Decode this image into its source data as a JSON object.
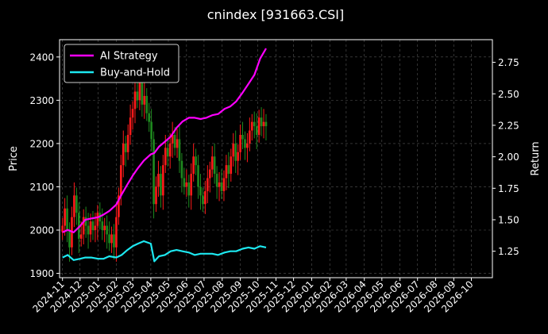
{
  "chart_data": {
    "type": "candlestick+line",
    "title": "cnindex [931663.CSI]",
    "ylabel_left": "Price",
    "ylabel_right": "Return",
    "ylim_left": [
      1890,
      2440
    ],
    "ylim_right": [
      1.04,
      2.93
    ],
    "yticks_left": [
      "1900",
      "2000",
      "2100",
      "2200",
      "2300",
      "2400"
    ],
    "yticks_right": [
      "1.25",
      "1.50",
      "1.75",
      "2.00",
      "2.25",
      "2.50",
      "2.75"
    ],
    "xlim": [
      "2024-10-27",
      "2026-11-06"
    ],
    "xticks": [
      "2024-11",
      "2024-12",
      "2025-01",
      "2025-02",
      "2025-03",
      "2025-04",
      "2025-05",
      "2025-06",
      "2025-07",
      "2025-08",
      "2025-09",
      "2025-10",
      "2025-11",
      "2025-12",
      "2026-01",
      "2026-02",
      "2026-03",
      "2026-04",
      "2026-05",
      "2026-06",
      "2026-07",
      "2026-08",
      "2026-09",
      "2026-10"
    ],
    "grid": true,
    "legend_position": "upper-left",
    "colors": {
      "up": "#ff1a1a",
      "down": "#1f8a1f",
      "ai_strategy": "#ff00ff",
      "buy_and_hold": "#1de8f0",
      "grid": "#555555"
    },
    "series": [
      {
        "name": "AI Strategy",
        "axis": "right",
        "x": [
          "2024-11-01",
          "2024-11-10",
          "2024-11-20",
          "2024-12-01",
          "2024-12-10",
          "2024-12-20",
          "2025-01-01",
          "2025-01-10",
          "2025-01-20",
          "2025-02-01",
          "2025-02-10",
          "2025-02-20",
          "2025-03-01",
          "2025-03-10",
          "2025-03-20",
          "2025-04-01",
          "2025-04-07",
          "2025-04-15",
          "2025-04-25",
          "2025-05-05",
          "2025-05-15",
          "2025-05-25",
          "2025-06-05",
          "2025-06-15",
          "2025-06-25",
          "2025-07-05",
          "2025-07-15",
          "2025-07-25",
          "2025-08-05",
          "2025-08-15",
          "2025-08-25",
          "2025-09-05",
          "2025-09-15",
          "2025-09-25",
          "2025-10-05",
          "2025-10-15"
        ],
        "values": [
          1.4,
          1.42,
          1.4,
          1.45,
          1.5,
          1.51,
          1.52,
          1.54,
          1.57,
          1.62,
          1.7,
          1.78,
          1.85,
          1.91,
          1.97,
          2.02,
          2.03,
          2.08,
          2.12,
          2.16,
          2.23,
          2.28,
          2.31,
          2.31,
          2.3,
          2.31,
          2.33,
          2.34,
          2.38,
          2.4,
          2.44,
          2.51,
          2.58,
          2.65,
          2.78,
          2.86
        ]
      },
      {
        "name": "Buy-and-Hold",
        "axis": "right",
        "x": [
          "2024-11-01",
          "2024-11-10",
          "2024-11-20",
          "2024-12-01",
          "2024-12-10",
          "2024-12-20",
          "2025-01-01",
          "2025-01-10",
          "2025-01-20",
          "2025-02-01",
          "2025-02-10",
          "2025-02-20",
          "2025-03-01",
          "2025-03-10",
          "2025-03-20",
          "2025-04-01",
          "2025-04-07",
          "2025-04-15",
          "2025-04-25",
          "2025-05-05",
          "2025-05-15",
          "2025-05-25",
          "2025-06-05",
          "2025-06-15",
          "2025-06-25",
          "2025-07-05",
          "2025-07-15",
          "2025-07-25",
          "2025-08-05",
          "2025-08-15",
          "2025-08-25",
          "2025-09-05",
          "2025-09-15",
          "2025-09-25",
          "2025-10-05",
          "2025-10-15"
        ],
        "values": [
          1.2,
          1.22,
          1.18,
          1.19,
          1.2,
          1.2,
          1.19,
          1.19,
          1.21,
          1.2,
          1.22,
          1.26,
          1.29,
          1.31,
          1.33,
          1.31,
          1.17,
          1.21,
          1.22,
          1.25,
          1.26,
          1.25,
          1.24,
          1.22,
          1.23,
          1.23,
          1.23,
          1.22,
          1.24,
          1.25,
          1.25,
          1.27,
          1.28,
          1.27,
          1.29,
          1.28
        ]
      }
    ],
    "candles": {
      "axis": "left",
      "x": [
        "2024-11-01",
        "2024-11-05",
        "2024-11-09",
        "2024-11-13",
        "2024-11-17",
        "2024-11-21",
        "2024-11-25",
        "2024-11-29",
        "2024-12-03",
        "2024-12-07",
        "2024-12-11",
        "2024-12-15",
        "2024-12-19",
        "2024-12-23",
        "2024-12-27",
        "2024-12-31",
        "2025-01-04",
        "2025-01-08",
        "2025-01-12",
        "2025-01-16",
        "2025-01-20",
        "2025-01-24",
        "2025-01-28",
        "2025-02-01",
        "2025-02-05",
        "2025-02-09",
        "2025-02-13",
        "2025-02-17",
        "2025-02-21",
        "2025-02-25",
        "2025-03-01",
        "2025-03-05",
        "2025-03-09",
        "2025-03-13",
        "2025-03-17",
        "2025-03-21",
        "2025-03-25",
        "2025-03-29",
        "2025-04-02",
        "2025-04-06",
        "2025-04-10",
        "2025-04-14",
        "2025-04-18",
        "2025-04-22",
        "2025-04-26",
        "2025-04-30",
        "2025-05-04",
        "2025-05-08",
        "2025-05-12",
        "2025-05-16",
        "2025-05-20",
        "2025-05-24",
        "2025-05-28",
        "2025-06-01",
        "2025-06-05",
        "2025-06-09",
        "2025-06-13",
        "2025-06-17",
        "2025-06-21",
        "2025-06-25",
        "2025-06-29",
        "2025-07-03",
        "2025-07-07",
        "2025-07-11",
        "2025-07-15",
        "2025-07-19",
        "2025-07-23",
        "2025-07-27",
        "2025-07-31",
        "2025-08-04",
        "2025-08-08",
        "2025-08-12",
        "2025-08-16",
        "2025-08-20",
        "2025-08-24",
        "2025-08-28",
        "2025-09-01",
        "2025-09-05",
        "2025-09-09",
        "2025-09-13",
        "2025-09-17",
        "2025-09-21",
        "2025-09-25",
        "2025-09-29",
        "2025-10-03",
        "2025-10-07",
        "2025-10-11",
        "2025-10-15"
      ],
      "close": [
        2010,
        2050,
        2000,
        1960,
        2030,
        2080,
        2040,
        1980,
        1990,
        2030,
        2010,
        1990,
        2020,
        2000,
        2010,
        2040,
        2020,
        2000,
        2010,
        1990,
        1970,
        1990,
        1960,
        2030,
        2080,
        2150,
        2200,
        2180,
        2220,
        2260,
        2280,
        2320,
        2300,
        2340,
        2290,
        2310,
        2270,
        2250,
        2210,
        2060,
        2100,
        2130,
        2080,
        2150,
        2190,
        2170,
        2200,
        2220,
        2190,
        2210,
        2160,
        2120,
        2100,
        2110,
        2080,
        2130,
        2170,
        2150,
        2100,
        2080,
        2060,
        2090,
        2120,
        2140,
        2170,
        2130,
        2100,
        2110,
        2090,
        2120,
        2150,
        2130,
        2170,
        2200,
        2160,
        2180,
        2220,
        2210,
        2190,
        2200,
        2230,
        2250,
        2240,
        2220,
        2260,
        2240,
        2250,
        2240
      ]
    }
  }
}
